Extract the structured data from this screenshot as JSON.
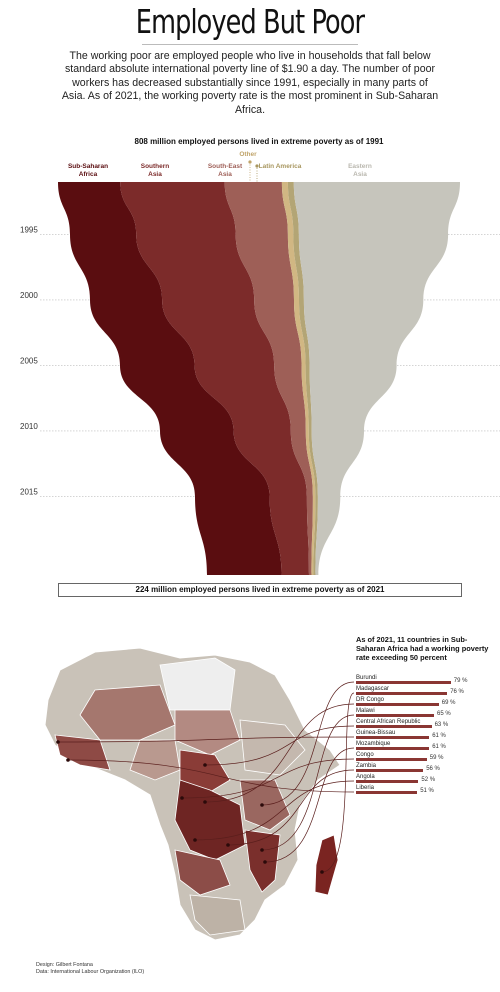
{
  "header": {
    "title": "Employed But Poor",
    "subtitle": "The working poor are employed people who live in households that fall below standard absolute international poverty line of $1.90 a day. The number of poor workers has decreased substantially since 1991, especially in many parts of Asia. As of 2021, the working poverty rate is the most prominent in Sub-Saharan Africa."
  },
  "chart_data": [
    {
      "type": "area",
      "annotations": {
        "top": "808 million employed persons lived in extreme poverty as of 1991",
        "bottom": "224 million employed persons lived in extreme poverty as of 2021"
      },
      "y_ticks": [
        "1995",
        "2000",
        "2005",
        "2010",
        "2015"
      ],
      "y_range": [
        1991,
        2021
      ],
      "years": [
        1991,
        1995,
        2000,
        2005,
        2010,
        2015,
        2021
      ],
      "series": [
        {
          "name": "Sub-Saharan Africa",
          "label_lines": [
            "Sub-Saharan",
            "Africa"
          ],
          "color": "#5a0d10",
          "values": [
            125,
            133,
            145,
            150,
            148,
            150,
            150
          ]
        },
        {
          "name": "Southern Asia",
          "label_lines": [
            "Southern",
            "Asia"
          ],
          "color": "#7c2b2a",
          "values": [
            210,
            200,
            185,
            160,
            115,
            75,
            55
          ]
        },
        {
          "name": "South-East Asia",
          "label_lines": [
            "South-East",
            "Asia"
          ],
          "color": "#9e5f57",
          "values": [
            115,
            105,
            80,
            55,
            30,
            12,
            5
          ]
        },
        {
          "name": "Other",
          "label_lines": [
            "Other"
          ],
          "color": "#d1b783",
          "values": [
            12,
            11,
            10,
            8,
            6,
            5,
            4
          ]
        },
        {
          "name": "Latin America",
          "label_lines": [
            "Latin America"
          ],
          "color": "#b3a575",
          "values": [
            12,
            11,
            10,
            8,
            6,
            5,
            4
          ]
        },
        {
          "name": "Eastern Asia",
          "label_lines": [
            "Eastern",
            "Asia"
          ],
          "color": "#c6c5bc",
          "values": [
            334,
            300,
            240,
            175,
            105,
            45,
            6
          ]
        }
      ]
    },
    {
      "type": "bar",
      "title": "As of 2021, 11 countries in Sub-Saharan Africa had a working poverty rate exceeding 50 percent",
      "unit": "%",
      "xlim": [
        0,
        100
      ],
      "categories": [
        "Burundi",
        "Madagascar",
        "DR Congo",
        "Malawi",
        "Central African Republic",
        "Guinea-Bissau",
        "Mozambique",
        "Congo",
        "Zambia",
        "Angola",
        "Liberia"
      ],
      "values": [
        79,
        76,
        69,
        65,
        63,
        61,
        61,
        59,
        56,
        52,
        51
      ]
    }
  ],
  "credits": {
    "design": "Design: Gilbert Fontana",
    "data": "Data: International Labour Organization (ILO)"
  }
}
